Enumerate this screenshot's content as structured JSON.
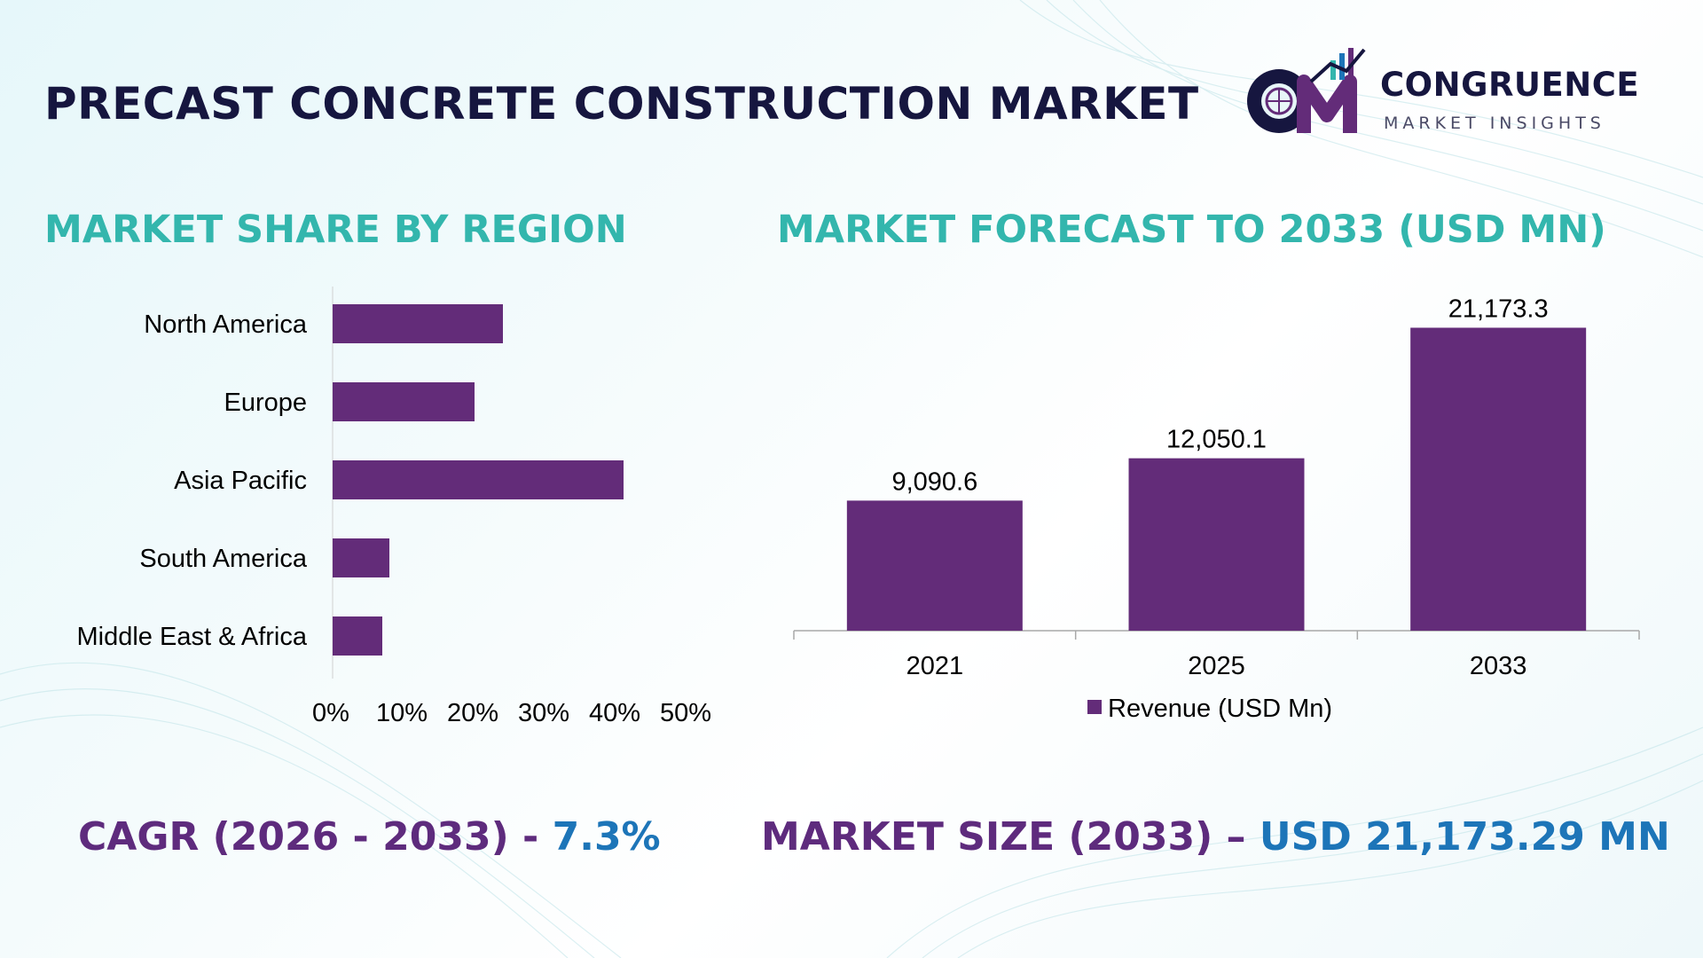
{
  "header": {
    "title": "PRECAST CONCRETE CONSTRUCTION MARKET"
  },
  "logo": {
    "name": "CONGRUENCE",
    "tagline": "MARKET INSIGHTS"
  },
  "colors": {
    "bar": "#632c79",
    "section_title": "#33b6ad",
    "stat_label": "#5e2b7d",
    "stat_value": "#1d75b8",
    "title": "#16163f"
  },
  "chart_data": [
    {
      "type": "bar",
      "orientation": "horizontal",
      "title": "MARKET SHARE BY REGION",
      "categories": [
        "North America",
        "Europe",
        "Asia Pacific",
        "South America",
        "Middle East & Africa"
      ],
      "values": [
        24,
        20,
        41,
        8,
        7
      ],
      "xlim": [
        0,
        50
      ],
      "xticks": [
        "0%",
        "10%",
        "20%",
        "30%",
        "40%",
        "50%"
      ],
      "grid": false,
      "legend": "none"
    },
    {
      "type": "bar",
      "orientation": "vertical",
      "title": "MARKET FORECAST TO 2033 (USD MN)",
      "categories": [
        "2021",
        "2025",
        "2033"
      ],
      "series": [
        {
          "name": "Revenue (USD Mn)",
          "values": [
            9090.6,
            12050.1,
            21173.3
          ]
        }
      ],
      "value_labels": [
        "9,090.6",
        "12,050.1",
        "21,173.3"
      ],
      "ylim": [
        0,
        23000
      ],
      "grid": false,
      "legend": "bottom"
    }
  ],
  "footer": {
    "cagr_label": "CAGR (2026 - 2033) - ",
    "cagr_value": "7.3%",
    "size_label": "MARKET SIZE (2033) – ",
    "size_value": "USD 21,173.29 MN"
  }
}
